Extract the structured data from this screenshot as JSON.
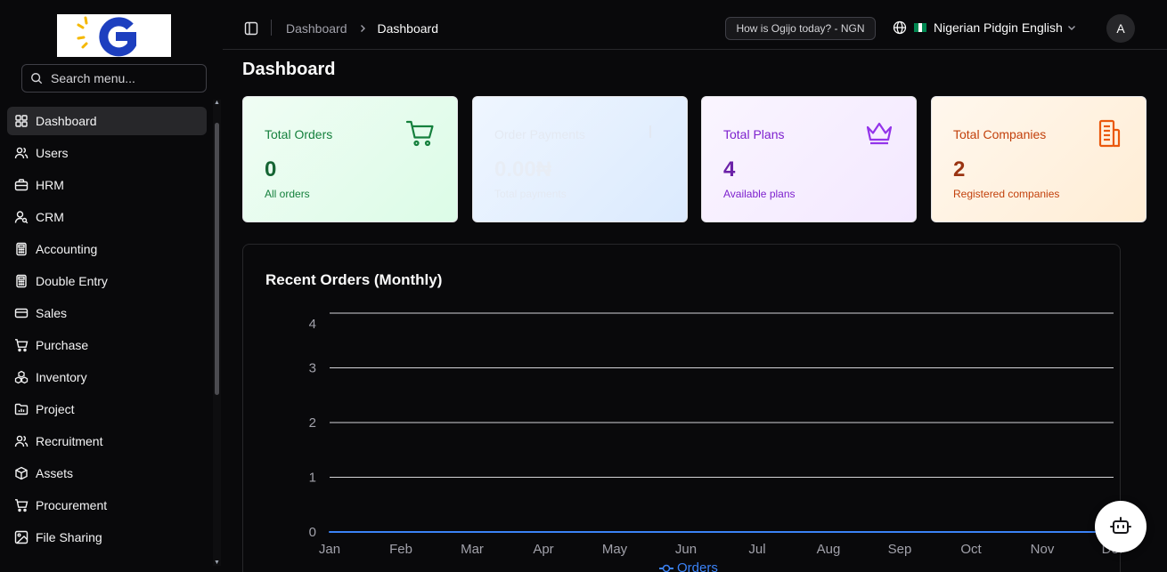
{
  "search": {
    "placeholder": "Search menu..."
  },
  "sidebar": {
    "items": [
      {
        "label": "Dashboard",
        "icon": "grid-icon",
        "active": true
      },
      {
        "label": "Users",
        "icon": "users-icon"
      },
      {
        "label": "HRM",
        "icon": "briefcase-icon"
      },
      {
        "label": "CRM",
        "icon": "user-search-icon"
      },
      {
        "label": "Accounting",
        "icon": "calculator-icon"
      },
      {
        "label": "Double Entry",
        "icon": "calculator-icon"
      },
      {
        "label": "Sales",
        "icon": "credit-card-icon"
      },
      {
        "label": "Purchase",
        "icon": "cart-icon"
      },
      {
        "label": "Inventory",
        "icon": "boxes-icon"
      },
      {
        "label": "Project",
        "icon": "folder-chart-icon"
      },
      {
        "label": "Recruitment",
        "icon": "users-icon"
      },
      {
        "label": "Assets",
        "icon": "box-icon"
      },
      {
        "label": "Procurement",
        "icon": "cart-icon"
      },
      {
        "label": "File Sharing",
        "icon": "image-icon"
      }
    ]
  },
  "header": {
    "breadcrumb": [
      "Dashboard",
      "Dashboard"
    ],
    "rate_badge": "How is Ogijo today? - NGN",
    "language": "Nigerian Pidgin English",
    "avatar_initial": "A"
  },
  "main": {
    "title": "Dashboard",
    "cards": [
      {
        "title": "Total Orders",
        "value": "0",
        "subtitle": "All orders",
        "icon": "cart-icon",
        "color": "#15803d"
      },
      {
        "title": "Order Payments",
        "value": "0.00₦",
        "subtitle": "Total payments",
        "icon": "currency-icon",
        "color": "#e4e9f2"
      },
      {
        "title": "Total Plans",
        "value": "4",
        "subtitle": "Available plans",
        "icon": "crown-icon",
        "color": "#9333ea"
      },
      {
        "title": "Total Companies",
        "value": "2",
        "subtitle": "Registered companies",
        "icon": "building-icon",
        "color": "#ea580c"
      }
    ]
  },
  "chart_data": {
    "type": "line",
    "title": "Recent Orders (Monthly)",
    "categories": [
      "Jan",
      "Feb",
      "Mar",
      "Apr",
      "May",
      "Jun",
      "Jul",
      "Aug",
      "Sep",
      "Oct",
      "Nov",
      "Dec"
    ],
    "series": [
      {
        "name": "Orders",
        "values": [
          0,
          0,
          0,
          0,
          0,
          0,
          0,
          0,
          0,
          0,
          0,
          0
        ],
        "color": "#3b82f6"
      }
    ],
    "yticks": [
      "0",
      "1",
      "2",
      "3",
      "4"
    ],
    "ylim": [
      0,
      4
    ],
    "grid": true,
    "legend": "bottom"
  }
}
